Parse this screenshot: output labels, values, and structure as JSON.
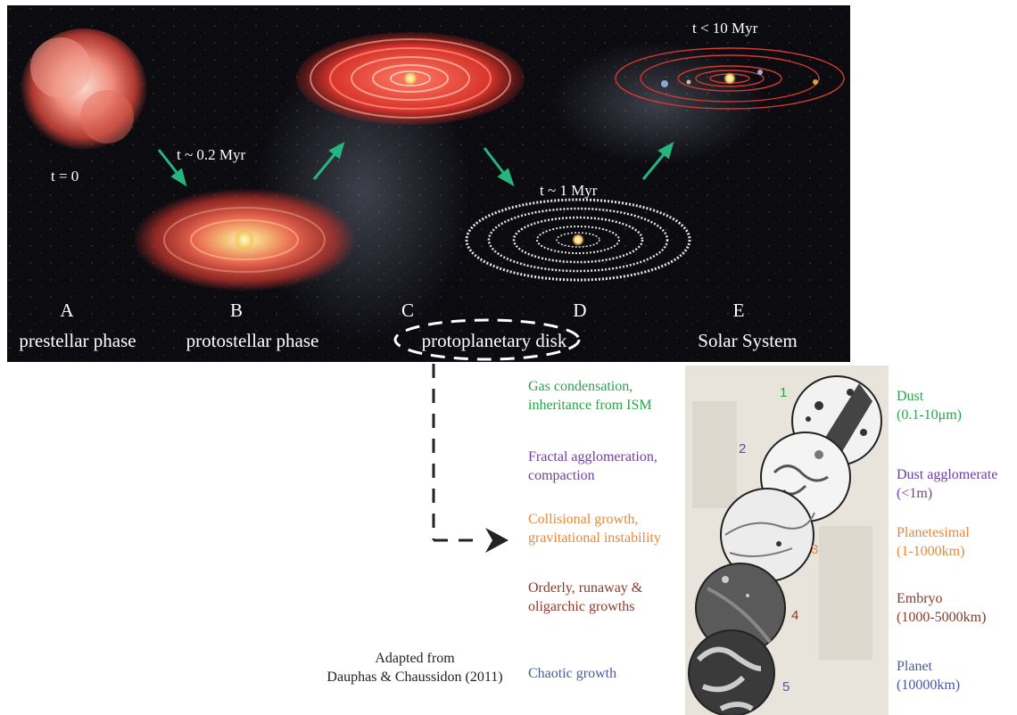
{
  "phases": [
    {
      "letter": "A",
      "name": "prestellar phase",
      "time": "t = 0"
    },
    {
      "letter": "B",
      "name": "protostellar phase",
      "time": "t ~ 0.2 Myr"
    },
    {
      "letter": "C",
      "name": "protoplanetary disk",
      "time": ""
    },
    {
      "letter": "D",
      "name": "",
      "time": "t ~ 1 Myr"
    },
    {
      "letter": "E",
      "name": "Solar System",
      "time": "t < 10 Myr"
    }
  ],
  "stages": [
    {
      "number": "1",
      "process": "Gas condensation, inheritance from ISM",
      "result": "Dust",
      "size": "(0.1-10μm)",
      "color": "#2aa34a"
    },
    {
      "number": "2",
      "process": "Fractal agglomeration, compaction",
      "result": "Dust agglomerate",
      "size": "(<1m)",
      "color": "#6b3f9e"
    },
    {
      "number": "3",
      "process": "Collisional growth, gravitational instability",
      "result": "Planetesimal",
      "size": "(1-1000km)",
      "color": "#e8893a"
    },
    {
      "number": "4",
      "process": "Orderly, runaway & oligarchic growths",
      "result": "Embryo",
      "size": "(1000-5000km)",
      "color": "#8b3a2a"
    },
    {
      "number": "5",
      "process": "Chaotic growth",
      "result": "Planet",
      "size": "(10000km)",
      "color": "#4a5aa0"
    }
  ],
  "credit": {
    "line1": "Adapted from",
    "line2": "Dauphas & Chaussidon (2011)"
  },
  "colors": {
    "space": "#0b0b10",
    "arrow": "#27b47e",
    "panel": "#e8e4dc"
  }
}
